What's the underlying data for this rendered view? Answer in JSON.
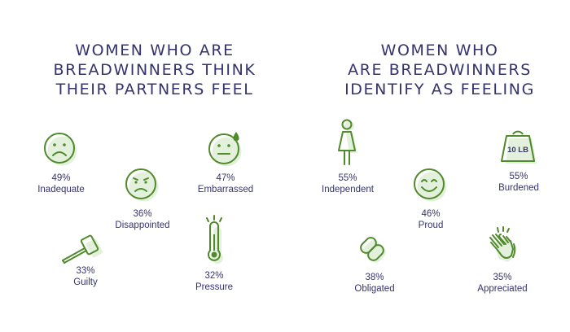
{
  "left_panel": {
    "title_lines": [
      "WOMEN WHO ARE",
      "BREADWINNERS THINK",
      "THEIR PARTNERS FEEL"
    ],
    "stats": [
      {
        "percent": "49%",
        "label": "Inadequate",
        "icon": "sad-face-icon"
      },
      {
        "percent": "36%",
        "label": "Disappointed",
        "icon": "frowning-face-icon"
      },
      {
        "percent": "47%",
        "label": "Embarrassed",
        "icon": "sweating-face-icon"
      },
      {
        "percent": "33%",
        "label": "Guilty",
        "icon": "gavel-icon"
      },
      {
        "percent": "32%",
        "label": "Pressure",
        "icon": "thermometer-icon"
      }
    ]
  },
  "right_panel": {
    "title_lines": [
      "WOMEN WHO",
      "ARE BREADWINNERS",
      "IDENTIFY AS FEELING"
    ],
    "stats": [
      {
        "percent": "55%",
        "label": "Independent",
        "icon": "woman-icon"
      },
      {
        "percent": "46%",
        "label": "Proud",
        "icon": "smiling-face-icon"
      },
      {
        "percent": "55%",
        "label": "Burdened",
        "icon": "weight-icon",
        "icon_text": "10 LB"
      },
      {
        "percent": "38%",
        "label": "Obligated",
        "icon": "chain-link-icon"
      },
      {
        "percent": "35%",
        "label": "Appreciated",
        "icon": "clapping-hands-icon"
      }
    ]
  },
  "colors": {
    "text": "#35336e",
    "icon_stroke": "#4f8a2b",
    "icon_shadow": "#e3f1dc"
  }
}
